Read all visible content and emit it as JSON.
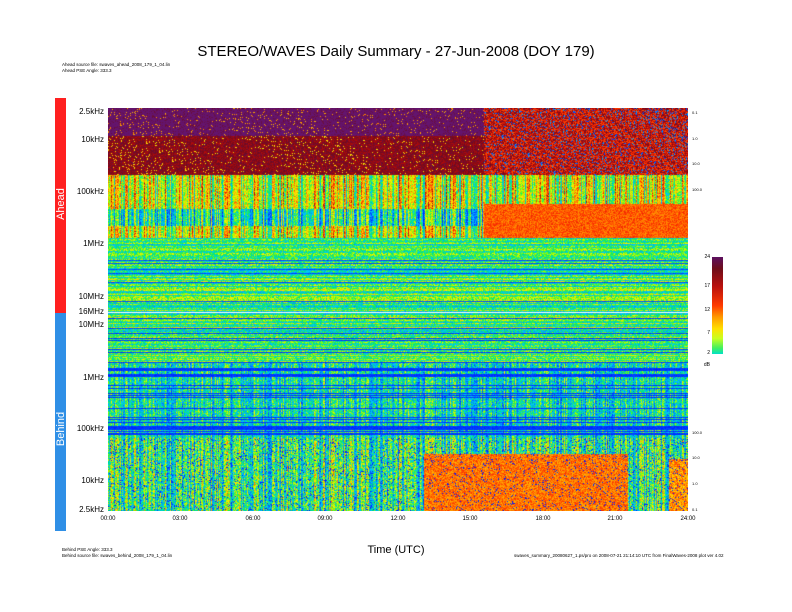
{
  "chart_data": {
    "type": "heatmap",
    "title": "STEREO/WAVES Daily Summary - 27-Jun-2008 (DOY 179)",
    "xlabel": "Time (UTC)",
    "x_ticks": [
      "00:00",
      "03:00",
      "06:00",
      "09:00",
      "12:00",
      "15:00",
      "18:00",
      "21:00",
      "24:00"
    ],
    "xlim": [
      0,
      24
    ],
    "panels": [
      {
        "name": "Ahead",
        "y_ticks": [
          "2.5kHz",
          "10kHz",
          "100kHz",
          "1MHz",
          "10MHz",
          "16MHz"
        ],
        "color": "#ff2020"
      },
      {
        "name": "Behind",
        "y_ticks": [
          "10MHz",
          "1MHz",
          "100kHz",
          "10kHz",
          "2.5kHz"
        ],
        "color": "#2f8fe6"
      }
    ],
    "colorbar": {
      "unit": "dB",
      "ticks": [
        "24",
        "17",
        "12",
        "7",
        "2"
      ],
      "range": [
        2,
        24
      ]
    },
    "right_ticks_ahead": [
      "0.1",
      "1.0",
      "10.0",
      "100.0"
    ],
    "right_ticks_behind": [
      "100.0",
      "10.0",
      "1.0",
      "0.1"
    ]
  },
  "header": {
    "ahead_source": "Ahead source file: swaves_ahead_2008_179_1_04.lin",
    "ahead_angle": "Ahead PSE Angle: 333.3"
  },
  "footer": {
    "behind_angle": "Behind PSE Angle: 333.3",
    "behind_source": "Behind source file: swaves_behind_2008_179_1_04.lin",
    "credit": "swaves_summary_20080627_1.ps/pro on 2008-07-21 21:14:10 UTC from FinalWaves-2008 plot ver 4.02"
  },
  "colors": {
    "ahead": "#ff2020",
    "behind": "#2f8fe6"
  }
}
